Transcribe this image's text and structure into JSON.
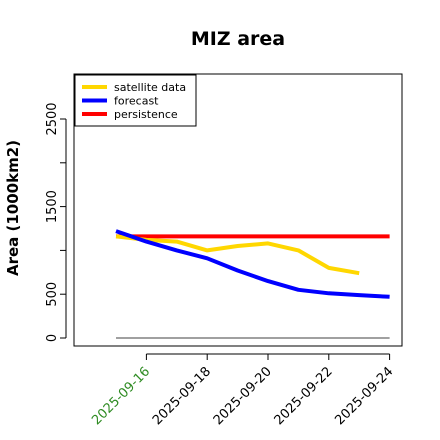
{
  "chart_data": {
    "type": "line",
    "title": "MIZ area",
    "xlabel": "",
    "ylabel": "Area (1000km2)",
    "x": [
      "2025-09-15",
      "2025-09-16",
      "2025-09-17",
      "2025-09-18",
      "2025-09-19",
      "2025-09-20",
      "2025-09-21",
      "2025-09-22",
      "2025-09-23",
      "2025-09-24"
    ],
    "xticks": [
      {
        "label": "2025-09-16",
        "color": "#2e8b22"
      },
      {
        "label": "2025-09-18",
        "color": "#000000"
      },
      {
        "label": "2025-09-20",
        "color": "#000000"
      },
      {
        "label": "2025-09-22",
        "color": "#000000"
      },
      {
        "label": "2025-09-24",
        "color": "#000000"
      }
    ],
    "yticks": [
      "0",
      "500",
      "1500",
      "2500"
    ],
    "ylim": [
      -50,
      3000
    ],
    "grid": false,
    "legend_position": "top-left",
    "series": [
      {
        "name": "satellite data",
        "color": "#ffd700",
        "values": [
          1160,
          1120,
          1100,
          1000,
          1050,
          1080,
          1000,
          800,
          740,
          null
        ]
      },
      {
        "name": "forecast",
        "color": "#0000ff",
        "values": [
          1220,
          1100,
          1000,
          910,
          770,
          650,
          550,
          510,
          490,
          470
        ]
      },
      {
        "name": "persistence",
        "color": "#ff0000",
        "values": [
          1160,
          1160,
          1160,
          1160,
          1160,
          1160,
          1160,
          1160,
          1160,
          1160
        ]
      },
      {
        "name": "",
        "color": "#808080",
        "values": [
          0,
          0,
          0,
          0,
          0,
          0,
          0,
          0,
          0,
          0
        ]
      }
    ]
  }
}
